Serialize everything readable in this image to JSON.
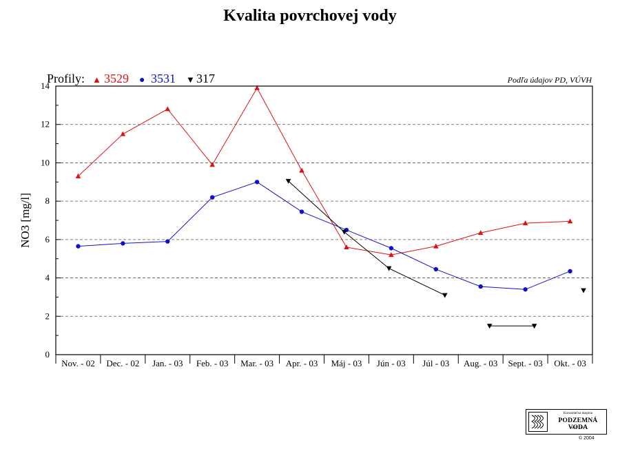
{
  "title": "Kvalita povrchovej vody",
  "source_note": "Podľa údajov PD, VÚVH",
  "legend": {
    "prefix": "Profily:",
    "items": [
      {
        "symbol": "▲",
        "label": "3529",
        "color": "#dd1111"
      },
      {
        "symbol": "●",
        "label": "3531",
        "color": "#1111cc"
      },
      {
        "symbol": "▼",
        "label": "317",
        "color": "#000000"
      }
    ]
  },
  "logo": {
    "line1": "Konzultačná skupina",
    "line2": "PODZEMNÁ VODA",
    "line3": "spol. s r.o.",
    "copyright": "© 2004"
  },
  "chart_data": {
    "type": "line",
    "title": "Kvalita povrchovej vody",
    "xlabel": "",
    "ylabel": "NO3 [mg/l]",
    "categories": [
      "Nov. - 02",
      "Dec. - 02",
      "Jan. - 03",
      "Feb. - 03",
      "Mar. - 03",
      "Apr. - 03",
      "Máj - 03",
      "Jún - 03",
      "Júl - 03",
      "Aug. - 03",
      "Sept. - 03",
      "Okt. - 03"
    ],
    "ylim": [
      0,
      14
    ],
    "yticks": [
      0,
      2,
      4,
      6,
      8,
      10,
      12,
      14
    ],
    "grid": "horizontal dashed",
    "legend_position": "top-left",
    "series": [
      {
        "name": "3529",
        "color": "#dd1111",
        "marker": "triangle-up",
        "points": [
          [
            0,
            9.3
          ],
          [
            1,
            11.5
          ],
          [
            2,
            12.8
          ],
          [
            3,
            9.9
          ],
          [
            4,
            13.9
          ],
          [
            5,
            9.6
          ],
          [
            6,
            5.6
          ],
          [
            7,
            5.2
          ],
          [
            8,
            5.65
          ],
          [
            9,
            6.35
          ],
          [
            10,
            6.85
          ],
          [
            11,
            6.95
          ]
        ],
        "segments": [
          [
            0,
            1,
            2,
            3,
            4,
            5,
            6,
            7,
            8,
            9,
            10,
            11
          ]
        ]
      },
      {
        "name": "3531",
        "color": "#1111cc",
        "marker": "circle",
        "points": [
          [
            0,
            5.65
          ],
          [
            1,
            5.8
          ],
          [
            2,
            5.9
          ],
          [
            3,
            8.2
          ],
          [
            4,
            9.0
          ],
          [
            5,
            7.45
          ],
          [
            6,
            6.5
          ],
          [
            7,
            5.55
          ],
          [
            8,
            4.45
          ],
          [
            9,
            3.55
          ],
          [
            10,
            3.4
          ],
          [
            11,
            4.35
          ]
        ],
        "segments": [
          [
            0,
            1,
            2,
            3,
            4,
            5,
            6,
            7,
            8,
            9,
            10,
            11
          ]
        ]
      },
      {
        "name": "317",
        "color": "#000000",
        "marker": "triangle-down",
        "points": [
          [
            4.7,
            9.05
          ],
          [
            5.95,
            6.4
          ],
          [
            6.95,
            4.5
          ],
          [
            8.2,
            3.1
          ],
          [
            9.2,
            1.5
          ],
          [
            10.2,
            1.5
          ],
          [
            11.3,
            3.35
          ]
        ],
        "segments": [
          [
            0,
            1,
            2,
            3
          ],
          [
            4,
            5
          ],
          [
            6
          ]
        ]
      }
    ]
  }
}
